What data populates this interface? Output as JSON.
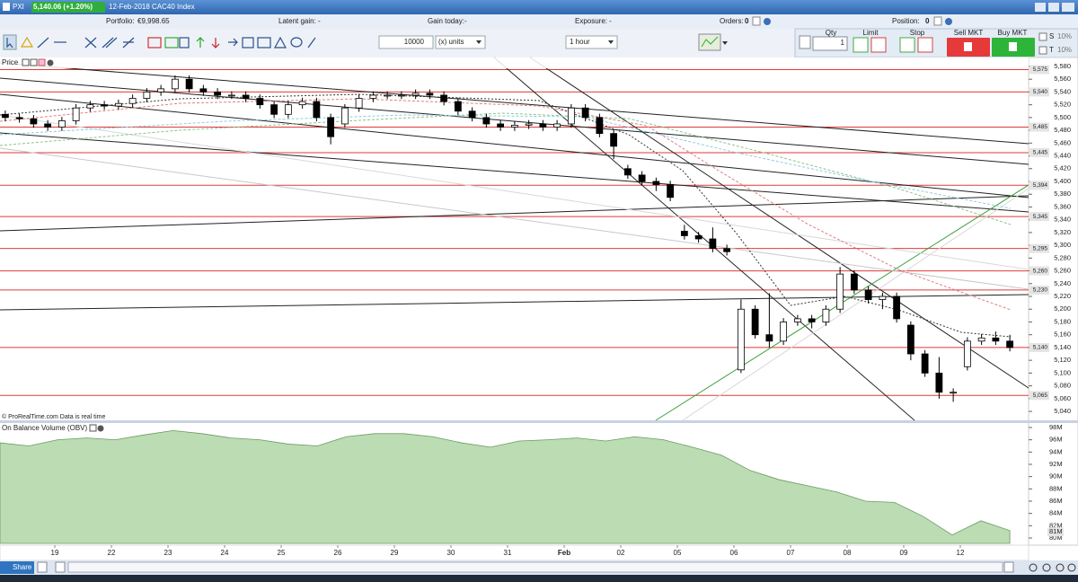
{
  "header": {
    "symbol": "PXI",
    "quote": "5,140.06 (+1.20%)",
    "description": "12-Feb-2018 CAC40 Index"
  },
  "account": {
    "portfolio_label": "Portfolio:",
    "portfolio": "€9,998.65",
    "latent_gain_label": "Latent gain:",
    "latent_gain": "-",
    "gain_today_label": "Gain today:",
    "gain_today": "-",
    "exposure_label": "Exposure:",
    "exposure": "-",
    "orders_label": "Orders:",
    "orders": "0",
    "position_label": "Position:",
    "position": "0"
  },
  "toolbar": {
    "quantity": "10000",
    "unit": "(x) units",
    "timeframe": "1 hour"
  },
  "order_panel": {
    "qty_label": "Qty",
    "qty": "1",
    "limit": "Limit",
    "stop": "Stop",
    "sell": "Sell MKT",
    "buy": "Buy MKT",
    "s": "S",
    "t": "T",
    "s_pct": "10%",
    "t_pct": "10%"
  },
  "chart_data": [
    {
      "type": "candlestick",
      "title": "Price",
      "source": "© ProRealTime.com Data is real time",
      "categories": [
        null,
        null,
        null,
        null,
        "19",
        null,
        null,
        null,
        "22",
        null,
        null,
        null,
        "23",
        null,
        null,
        null,
        "24",
        null,
        null,
        null,
        "25",
        null,
        null,
        null,
        "26",
        null,
        null,
        null,
        "29",
        null,
        null,
        null,
        "30",
        null,
        null,
        null,
        "31",
        null,
        null,
        null,
        "Feb",
        null,
        null,
        null,
        "02",
        null,
        null,
        null,
        "05",
        null,
        null,
        null,
        "06",
        null,
        null,
        null,
        "07",
        null,
        null,
        null,
        "08",
        null,
        null,
        null,
        "09",
        null,
        null,
        null,
        "12",
        null,
        null,
        null
      ],
      "open": [
        5505,
        5500,
        5498,
        5490,
        5485,
        5495,
        5515,
        5520,
        5518,
        5522,
        5530,
        5540,
        5545,
        5560,
        5545,
        5540,
        5535,
        5535,
        5530,
        5520,
        5505,
        5520,
        5525,
        5500,
        5490,
        5515,
        5530,
        5535,
        5535,
        5535,
        5538,
        5535,
        5525,
        5510,
        5500,
        5490,
        5485,
        5488,
        5490,
        5485,
        5490,
        5515,
        5500,
        5475,
        5420,
        5410,
        5400,
        5395,
        5322,
        5315,
        5310,
        5295,
        5105,
        5200,
        5160,
        5150,
        5180,
        5185,
        5180,
        5200,
        5255,
        5230,
        5215,
        5220,
        5175,
        5130,
        5100,
        5070,
        5110,
        5150,
        5155,
        5150
      ],
      "high": [
        5511,
        5506,
        5504,
        5496,
        5501,
        5521,
        5526,
        5526,
        5528,
        5536,
        5546,
        5551,
        5566,
        5566,
        5551,
        5546,
        5541,
        5541,
        5536,
        5526,
        5526,
        5531,
        5531,
        5506,
        5521,
        5536,
        5541,
        5541,
        5541,
        5544,
        5544,
        5541,
        5531,
        5516,
        5506,
        5496,
        5494,
        5496,
        5496,
        5496,
        5521,
        5521,
        5506,
        5481,
        5426,
        5416,
        5406,
        5401,
        5332,
        5321,
        5328,
        5301,
        5215,
        5206,
        5225,
        5186,
        5191,
        5191,
        5206,
        5266,
        5261,
        5236,
        5226,
        5226,
        5181,
        5136,
        5125,
        5076,
        5156,
        5161,
        5165,
        5160
      ],
      "low": [
        5494,
        5492,
        5484,
        5479,
        5479,
        5489,
        5509,
        5512,
        5512,
        5516,
        5524,
        5534,
        5539,
        5539,
        5534,
        5529,
        5529,
        5524,
        5514,
        5499,
        5499,
        5514,
        5494,
        5458,
        5484,
        5509,
        5524,
        5529,
        5529,
        5529,
        5529,
        5519,
        5504,
        5494,
        5484,
        5479,
        5479,
        5482,
        5479,
        5479,
        5484,
        5494,
        5469,
        5435,
        5404,
        5394,
        5385,
        5369,
        5309,
        5304,
        5289,
        5284,
        5100,
        5154,
        5140,
        5144,
        5174,
        5170,
        5174,
        5194,
        5224,
        5209,
        5200,
        5179,
        5120,
        5094,
        5060,
        5055,
        5104,
        5144,
        5144,
        5134
      ],
      "close": [
        5500,
        5498,
        5490,
        5485,
        5495,
        5515,
        5520,
        5518,
        5522,
        5530,
        5540,
        5545,
        5560,
        5545,
        5540,
        5535,
        5535,
        5530,
        5520,
        5505,
        5520,
        5525,
        5500,
        5470,
        5515,
        5530,
        5535,
        5535,
        5535,
        5538,
        5535,
        5525,
        5510,
        5500,
        5490,
        5485,
        5488,
        5490,
        5485,
        5490,
        5515,
        5500,
        5475,
        5455,
        5410,
        5400,
        5395,
        5375,
        5315,
        5310,
        5295,
        5290,
        5200,
        5160,
        5150,
        5180,
        5185,
        5180,
        5200,
        5255,
        5230,
        5215,
        5220,
        5185,
        5130,
        5100,
        5070,
        5070,
        5150,
        5155,
        5150,
        5140
      ],
      "ylim": [
        5026,
        5594
      ],
      "yticks": [
        {
          "value": 5040,
          "label": "5,040"
        },
        {
          "value": 5060,
          "label": "5,060"
        },
        {
          "value": 5080,
          "label": "5,080"
        },
        {
          "value": 5100,
          "label": "5,100"
        },
        {
          "value": 5120,
          "label": "5,120"
        },
        {
          "value": 5140,
          "label": "5,140"
        },
        {
          "value": 5160,
          "label": "5,160"
        },
        {
          "value": 5180,
          "label": "5,180"
        },
        {
          "value": 5200,
          "label": "5,200"
        },
        {
          "value": 5220,
          "label": "5,220"
        },
        {
          "value": 5240,
          "label": "5,240"
        },
        {
          "value": 5260,
          "label": "5,260"
        },
        {
          "value": 5280,
          "label": "5,280"
        },
        {
          "value": 5300,
          "label": "5,300"
        },
        {
          "value": 5320,
          "label": "5,320"
        },
        {
          "value": 5340,
          "label": "5,340"
        },
        {
          "value": 5360,
          "label": "5,360"
        },
        {
          "value": 5380,
          "label": "5,380"
        },
        {
          "value": 5400,
          "label": "5,400"
        },
        {
          "value": 5420,
          "label": "5,420"
        },
        {
          "value": 5440,
          "label": "5,440"
        },
        {
          "value": 5460,
          "label": "5,460"
        },
        {
          "value": 5480,
          "label": "5,480"
        },
        {
          "value": 5500,
          "label": "5,500"
        },
        {
          "value": 5520,
          "label": "5,520"
        },
        {
          "value": 5540,
          "label": "5,540"
        },
        {
          "value": 5560,
          "label": "5,560"
        },
        {
          "value": 5580,
          "label": "5,580"
        }
      ],
      "levels": [
        {
          "value": 5575,
          "label": "5,575"
        },
        {
          "value": 5540,
          "label": "5,540"
        },
        {
          "value": 5485,
          "label": "5,485"
        },
        {
          "value": 5445,
          "label": "5,445"
        },
        {
          "value": 5394,
          "label": "5,394"
        },
        {
          "value": 5345,
          "label": "5,345"
        },
        {
          "value": 5295,
          "label": "5,295"
        },
        {
          "value": 5260,
          "label": "5,260"
        },
        {
          "value": 5230,
          "label": "5,230"
        },
        {
          "value": 5140,
          "label": "5,140"
        },
        {
          "value": 5065,
          "label": "5,065"
        }
      ],
      "up_color": "#ffffff",
      "down_color": "#000000",
      "level_color": "#e03a3a"
    },
    {
      "type": "area",
      "title": "On Balance Volume (OBV)",
      "color": "#bcdcb4",
      "values": [
        95500000,
        95000000,
        96000000,
        96300000,
        96000000,
        96800000,
        97500000,
        97000000,
        96300000,
        96000000,
        95300000,
        95000000,
        96500000,
        97000000,
        97000000,
        96500000,
        95500000,
        94800000,
        95800000,
        96000000,
        96300000,
        95800000,
        96500000,
        96000000,
        94800000,
        93500000,
        91000000,
        89500000,
        88500000,
        87500000,
        86000000,
        85800000,
        83500000,
        80500000,
        82800000,
        81200000
      ],
      "ylim": [
        79120000,
        98290000
      ],
      "yticks": [
        {
          "value": 80000000,
          "label": "80M"
        },
        {
          "value": 82000000,
          "label": "82M"
        },
        {
          "value": 84000000,
          "label": "84M"
        },
        {
          "value": 86000000,
          "label": "86M"
        },
        {
          "value": 88000000,
          "label": "88M"
        },
        {
          "value": 90000000,
          "label": "90M"
        },
        {
          "value": 92000000,
          "label": "92M"
        },
        {
          "value": 94000000,
          "label": "94M"
        },
        {
          "value": 96000000,
          "label": "96M"
        },
        {
          "value": 98000000,
          "label": "98M"
        }
      ],
      "last_value": {
        "value": 81000000,
        "label": "81M"
      }
    }
  ],
  "footer": {
    "share": "Share"
  }
}
